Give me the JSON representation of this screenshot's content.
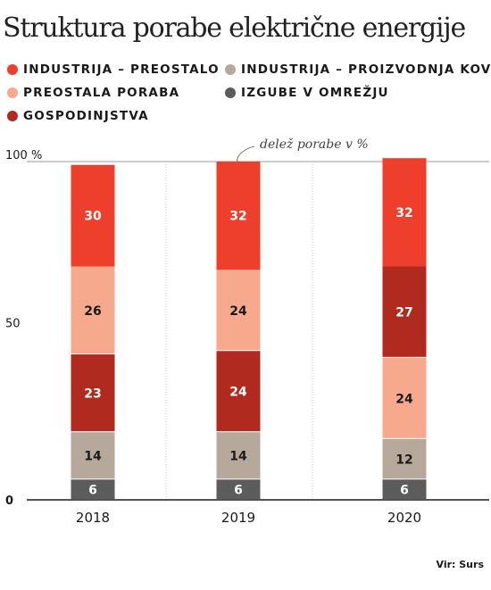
{
  "title": "Struktura porabe električne energije",
  "source": "Vir: Surs",
  "annotation": "delež porabe v %",
  "legend": [
    {
      "label": "INDUSTRIJA – PREOSTALO",
      "color": "#ee3e2c"
    },
    {
      "label": "INDUSTRIJA – PROIZVODNJA KOVIN",
      "color": "#b6a99c"
    },
    {
      "label": "PREOSTALA PORABA",
      "color": "#f7a98d"
    },
    {
      "label": "IZGUBE V OMREŽJU",
      "color": "#5c5c5c"
    },
    {
      "label": "GOSPODINJSTVA",
      "color": "#b02a20"
    }
  ],
  "chart_data": {
    "type": "bar",
    "stacked": true,
    "categories": [
      "2018",
      "2019",
      "2020"
    ],
    "series": [
      {
        "name": "IZGUBE V OMREŽJU",
        "color": "#5c5c5c",
        "values": [
          6,
          6,
          6
        ]
      },
      {
        "name": "INDUSTRIJA – PROIZVODNJA KOVIN",
        "color": "#b6a99c",
        "values": [
          14,
          14,
          12
        ]
      },
      {
        "name": "GOSPODINJSTVA",
        "color": "#b02a20",
        "values": [
          23,
          24,
          27
        ]
      },
      {
        "name": "PREOSTALA PORABA",
        "color": "#f7a98d",
        "values": [
          26,
          24,
          24
        ]
      },
      {
        "name": "INDUSTRIJA – PREOSTALO",
        "color": "#ee3e2c",
        "values": [
          30,
          32,
          32
        ]
      }
    ],
    "stack_order": {
      "2018": [
        "IZGUBE V OMREŽJU",
        "INDUSTRIJA – PROIZVODNJA KOVIN",
        "GOSPODINJSTVA",
        "PREOSTALA PORABA",
        "INDUSTRIJA – PREOSTALO"
      ],
      "2019": [
        "IZGUBE V OMREŽJU",
        "INDUSTRIJA – PROIZVODNJA KOVIN",
        "GOSPODINJSTVA",
        "PREOSTALA PORABA",
        "INDUSTRIJA – PREOSTALO"
      ],
      "2020": [
        "IZGUBE V OMREŽJU",
        "INDUSTRIJA – PROIZVODNJA KOVIN",
        "PREOSTALA PORABA",
        "GOSPODINJSTVA",
        "INDUSTRIJA – PREOSTALO"
      ]
    },
    "yticks": [
      {
        "value": 0,
        "label": "0"
      },
      {
        "value": 50,
        "label": "50"
      },
      {
        "value": 100,
        "label": "100 %"
      }
    ],
    "ylim": [
      0,
      100
    ],
    "grid": true
  }
}
